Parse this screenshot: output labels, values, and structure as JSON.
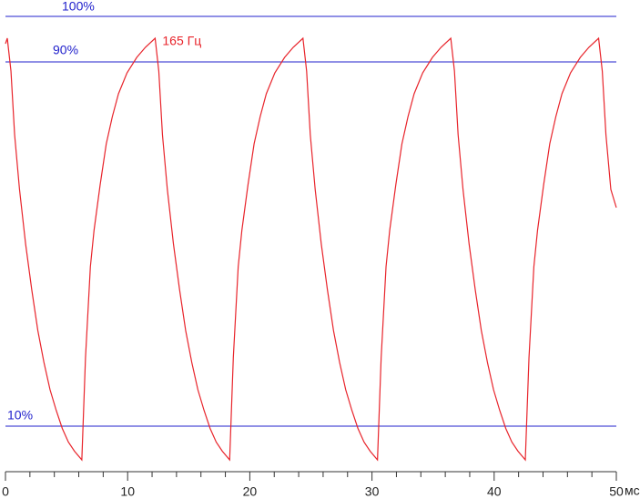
{
  "chart_data": {
    "type": "line",
    "x_unit": "мс",
    "x": [
      0,
      0.15,
      0.45,
      0.75,
      1.15,
      1.65,
      2.15,
      2.65,
      3.15,
      3.65,
      4.15,
      4.65,
      5.15,
      5.65,
      6.25,
      6.55,
      6.95,
      7.25,
      7.75,
      8.25,
      8.75,
      9.25,
      9.95,
      10.75,
      11.45,
      12.25,
      12.55,
      12.85,
      13.25,
      13.75,
      14.25,
      14.75,
      15.25,
      15.75,
      16.25,
      16.75,
      17.25,
      17.75,
      18.35,
      18.65,
      19.05,
      19.35,
      19.85,
      20.35,
      20.85,
      21.35,
      22.05,
      22.85,
      23.55,
      24.35,
      24.65,
      24.95,
      25.35,
      25.85,
      26.35,
      26.85,
      27.35,
      27.85,
      28.35,
      28.85,
      29.35,
      29.85,
      30.45,
      30.75,
      31.15,
      31.45,
      31.95,
      32.45,
      32.95,
      33.45,
      34.15,
      34.95,
      35.65,
      36.45,
      36.75,
      37.05,
      37.45,
      37.95,
      38.45,
      38.95,
      39.45,
      39.95,
      40.45,
      40.95,
      41.45,
      41.95,
      42.55,
      42.85,
      43.25,
      43.55,
      44.05,
      44.55,
      45.05,
      45.55,
      46.25,
      47.05,
      47.75,
      48.55,
      48.85,
      49.15,
      49.55,
      50
    ],
    "series": [
      {
        "name": "165 Гц",
        "color": "#e8242b",
        "values": [
          94,
          95.2,
          88,
          74,
          62,
          50,
          40,
          31,
          24,
          18,
          13.5,
          9.5,
          6.5,
          4.5,
          2.6,
          25,
          45,
          53,
          63,
          72,
          78,
          83,
          87.6,
          91,
          93.2,
          95.2,
          88,
          74,
          62,
          50,
          40,
          31,
          24,
          18,
          13.5,
          9.5,
          6.5,
          4.5,
          2.6,
          25,
          45,
          53,
          63,
          72,
          78,
          83,
          87.6,
          91,
          93.2,
          95.2,
          88,
          74,
          62,
          50,
          40,
          31,
          24,
          18,
          13.5,
          9.5,
          6.5,
          4.5,
          2.6,
          25,
          45,
          53,
          63,
          72,
          78,
          83,
          87.6,
          91,
          93.2,
          95.2,
          88,
          74,
          62,
          50,
          40,
          31,
          24,
          18,
          13.5,
          9.5,
          6.5,
          4.5,
          2.6,
          25,
          45,
          53,
          63,
          72,
          78,
          83,
          87.6,
          91,
          93.2,
          95.2,
          88,
          74,
          62,
          58
        ]
      }
    ],
    "reference_lines": [
      {
        "value": 100,
        "label": "100%"
      },
      {
        "value": 90,
        "label": "90%"
      },
      {
        "value": 10,
        "label": "10%"
      }
    ],
    "reference_color": "#2222cc",
    "xlim": [
      0,
      50
    ],
    "xticks": [
      0,
      10,
      20,
      30,
      40,
      50
    ],
    "xminorticks": [
      2,
      4,
      6,
      8,
      12,
      14,
      16,
      18,
      22,
      24,
      26,
      28,
      32,
      34,
      36,
      38,
      42,
      44,
      46,
      48
    ],
    "ylim": [
      0,
      103.6
    ]
  }
}
